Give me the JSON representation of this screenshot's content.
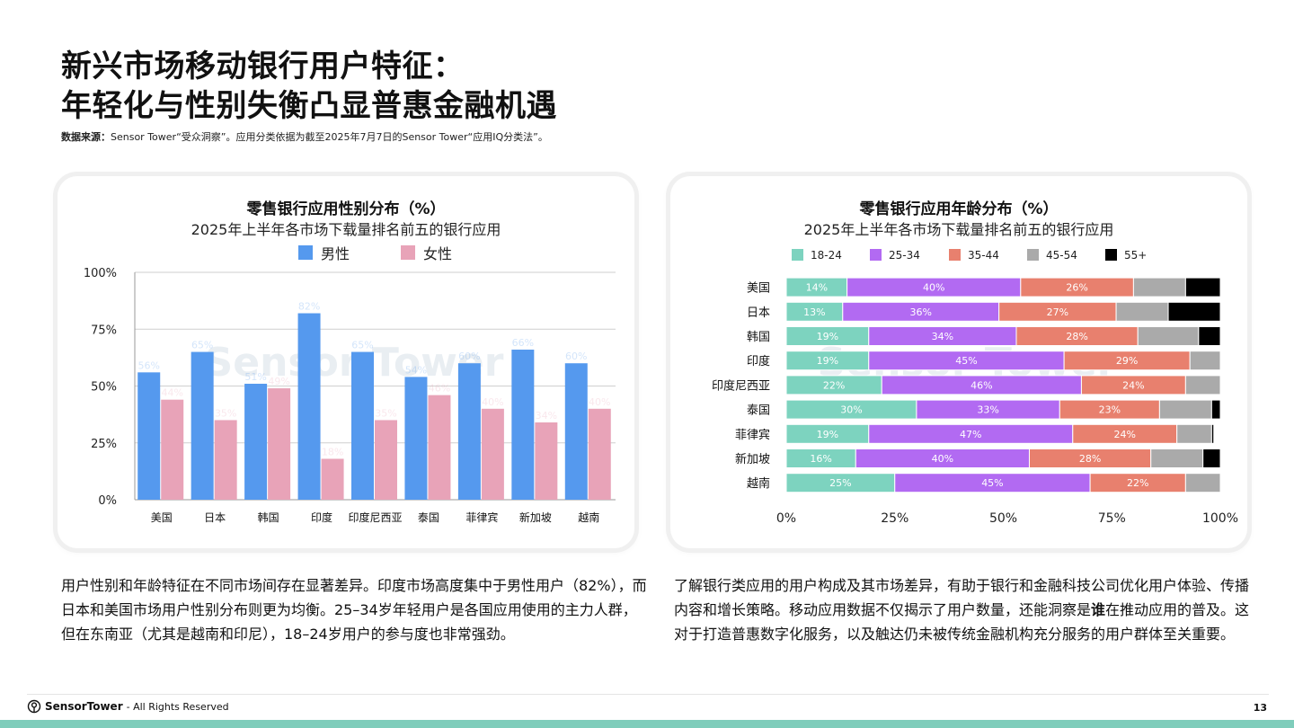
{
  "page": {
    "title_line1": "新兴市场移动银行用户特征：",
    "title_line2": "年轻化与性别失衡凸显普惠金融机遇",
    "source_label": "数据来源：",
    "source_text": "Sensor Tower“受众洞察”。应用分类依据为截至2025年7月7日的Sensor Tower“应用IQ分类法”。",
    "paragraph_left": "用户性别和年龄特征在不同市场间存在显著差异。印度市场高度集中于男性用户（82%），而日本和美国市场用户性别分布则更为均衡。25–34岁年轻用户是各国应用使用的主力人群，但在东南亚（尤其是越南和印尼），18–24岁用户的参与度也非常强劲。",
    "paragraph_right_a": "了解银行类应用的用户构成及其市场差异，有助于银行和金融科技公司优化用户体验、传播内容和增长策略。移动应用数据不仅揭示了用户数量，还能洞察是",
    "paragraph_right_bold": "谁",
    "paragraph_right_b": "在推动应用的普及。这对于打造普惠数字化服务，以及触达仍未被传统金融机构充分服务的用户群体至关重要。",
    "footer_brand": "SensorTower",
    "footer_rights": "- All Rights Reserved",
    "page_number": "13",
    "watermark": "Sensor Tower"
  },
  "chart_data": [
    {
      "type": "bar",
      "title": "零售银行应用性别分布（%）",
      "subtitle": "2025年上半年各市场下载量排名前五的银行应用",
      "categories": [
        "美国",
        "日本",
        "韩国",
        "印度",
        "印度尼西亚",
        "泰国",
        "菲律宾",
        "新加坡",
        "越南"
      ],
      "series": [
        {
          "name": "男性",
          "color": "#5599ee",
          "values": [
            56,
            65,
            51,
            82,
            65,
            54,
            60,
            66,
            60
          ]
        },
        {
          "name": "女性",
          "color": "#e8a3b8",
          "values": [
            44,
            35,
            49,
            18,
            35,
            46,
            40,
            34,
            40
          ]
        }
      ],
      "ylim": [
        0,
        100
      ],
      "yticks": [
        "0%",
        "25%",
        "50%",
        "75%",
        "100%"
      ],
      "legend": "top-center",
      "grid": true
    },
    {
      "type": "bar",
      "orientation": "horizontal",
      "stacked": true,
      "title": "零售银行应用年龄分布（%）",
      "subtitle": "2025年上半年各市场下载量排名前五的银行应用",
      "categories": [
        "美国",
        "日本",
        "韩国",
        "印度",
        "印度尼西亚",
        "泰国",
        "菲律宾",
        "新加坡",
        "越南"
      ],
      "series": [
        {
          "name": "18-24",
          "color": "#7dd3bf",
          "values": [
            14,
            13,
            19,
            19,
            22,
            30,
            19,
            16,
            25
          ]
        },
        {
          "name": "25-34",
          "color": "#b26af2",
          "values": [
            40,
            36,
            34,
            45,
            46,
            33,
            47,
            40,
            45
          ]
        },
        {
          "name": "35-44",
          "color": "#e8806e",
          "values": [
            26,
            27,
            28,
            29,
            24,
            23,
            24,
            28,
            22
          ]
        },
        {
          "name": "45-54",
          "color": "#aaaaaa",
          "values": [
            12,
            12,
            14,
            7,
            8,
            12,
            8,
            12,
            8
          ]
        },
        {
          "name": "55+",
          "color": "#000000",
          "values": [
            8,
            12,
            5,
            0,
            0,
            2,
            0.5,
            4,
            0
          ]
        }
      ],
      "xlim": [
        0,
        100
      ],
      "xticks": [
        "0%",
        "25%",
        "50%",
        "75%",
        "100%"
      ],
      "legend": "top-center",
      "grid": false
    }
  ]
}
